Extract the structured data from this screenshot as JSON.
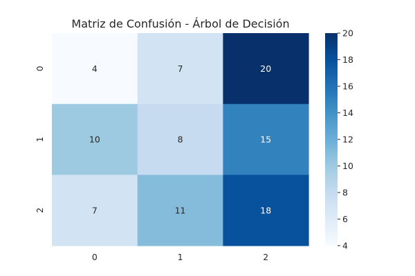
{
  "chart_data": {
    "type": "heatmap",
    "title": "Matriz de Confusión - Árbol de Decisión",
    "xlabel": "",
    "ylabel": "",
    "x_categories": [
      "0",
      "1",
      "2"
    ],
    "y_categories": [
      "0",
      "1",
      "2"
    ],
    "values": [
      [
        4,
        7,
        20
      ],
      [
        10,
        8,
        15
      ],
      [
        7,
        11,
        18
      ]
    ],
    "colorbar": {
      "min": 4,
      "max": 20,
      "ticks": [
        "4",
        "6",
        "8",
        "10",
        "12",
        "14",
        "16",
        "18",
        "20"
      ],
      "colormap": "Blues"
    },
    "grid": false
  }
}
